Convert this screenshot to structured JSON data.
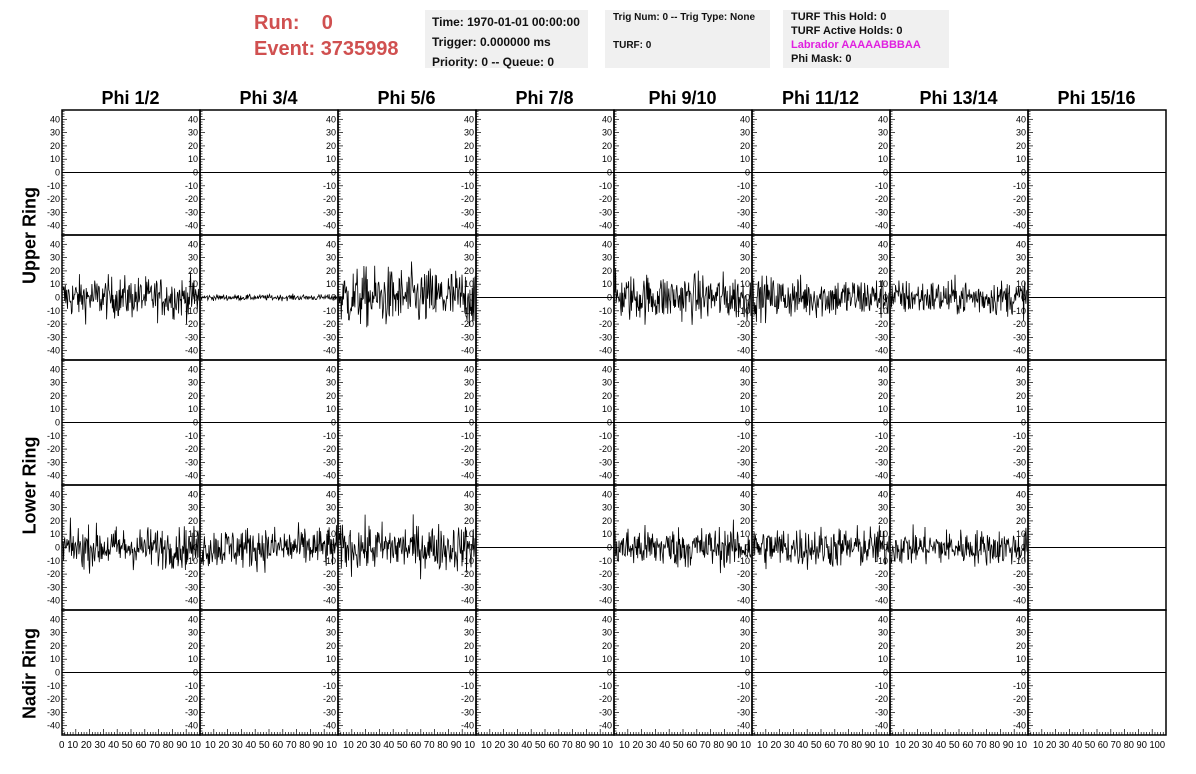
{
  "header": {
    "run_label": "Run:",
    "run_value": "0",
    "event_label": "Event:",
    "event_value": "3735998"
  },
  "info_box_1": {
    "time": "Time: 1970-01-01 00:00:00",
    "trigger": "Trigger: 0.000000 ms",
    "priority": "Priority: 0 -- Queue: 0"
  },
  "info_box_2": {
    "trig": "Trig Num: 0 -- Trig Type: None",
    "turf": "TURF: 0"
  },
  "info_box_3": {
    "this_hold": "TURF This Hold: 0",
    "active_holds": "TURF Active Holds: 0",
    "labrador": "Labrador AAAAABBBAA",
    "phi_mask": "Phi Mask: 0"
  },
  "colors": {
    "labrador": "#e020e0",
    "run": "#d05050"
  },
  "chart_data": {
    "type": "line",
    "columns": [
      "Phi 1/2",
      "Phi 3/4",
      "Phi 5/6",
      "Phi 7/8",
      "Phi 9/10",
      "Phi 11/12",
      "Phi 13/14",
      "Phi 15/16"
    ],
    "rows": [
      "Upper Ring",
      "Lower Ring",
      "Nadir Ring"
    ],
    "ylim": [
      -47,
      47
    ],
    "yticks": [
      40,
      30,
      20,
      10,
      0,
      -10,
      -20,
      -30,
      -40
    ],
    "xlim": [
      0,
      100
    ],
    "xtick_labels": [
      "0 10 20 30 40 50 60 70 80 90 10",
      "10 20 30 40 50 60 70 80 90 10",
      "10 20 30 40 50 60 70 80 90 10",
      "10 20 30 40 50 60 70 80 90 10",
      "10 20 30 40 50 60 70 80 90 10",
      "10 20 30 40 50 60 70 80 90 10",
      "10 20 30 40 50 60 70 80 90 10",
      "10 20 30 40 50 60 70 80 90 100"
    ],
    "panel_rows": 5,
    "series_amplitude": [
      [
        0,
        0,
        0,
        0,
        0,
        0,
        0,
        0
      ],
      [
        14,
        2,
        20,
        0,
        16,
        14,
        12,
        0
      ],
      [
        0,
        0,
        0,
        0,
        0,
        0,
        0,
        0
      ],
      [
        14,
        14,
        16,
        0,
        14,
        14,
        12,
        0
      ],
      [
        0,
        0,
        0,
        0,
        0,
        0,
        0,
        0
      ]
    ]
  }
}
